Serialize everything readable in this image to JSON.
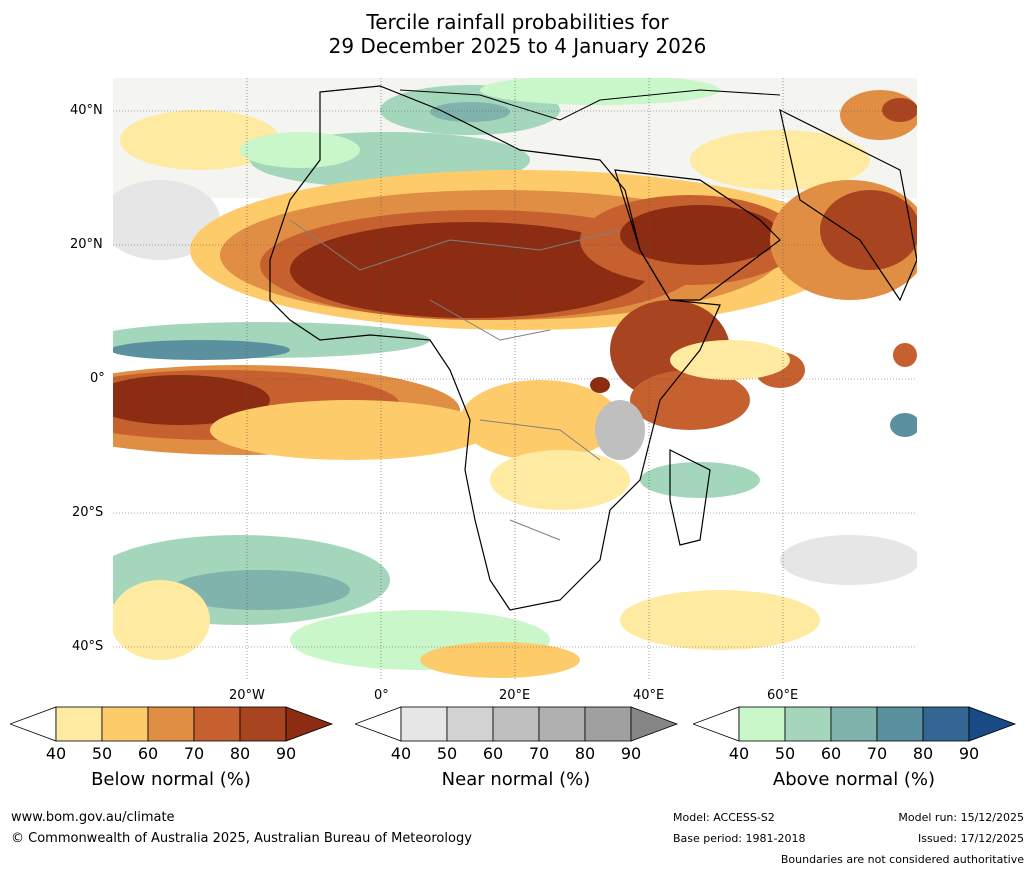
{
  "title": {
    "line1": "Tercile rainfall probabilities for",
    "line2": "29 December 2025 to 4 January 2026"
  },
  "map": {
    "lat_labels": [
      "40°N",
      "20°N",
      "0°",
      "20°S",
      "40°S"
    ],
    "lon_labels": [
      "20°W",
      "0°",
      "20°E",
      "40°E",
      "60°E"
    ],
    "region": "Africa"
  },
  "legends": [
    {
      "name": "Below normal (%)",
      "ticks": [
        "40",
        "50",
        "60",
        "70",
        "80",
        "90"
      ],
      "colors": [
        "#ffffff",
        "#feeaa0",
        "#fecb6a",
        "#e08e44",
        "#c7602f",
        "#a8441f",
        "#8b2c13"
      ]
    },
    {
      "name": "Near normal (%)",
      "ticks": [
        "40",
        "50",
        "60",
        "70",
        "80",
        "90"
      ],
      "colors": [
        "#ffffff",
        "#e6e6e6",
        "#d2d2d2",
        "#bfbfbf",
        "#b0b0b0",
        "#a0a0a0",
        "#858585"
      ]
    },
    {
      "name": "Above normal (%)",
      "ticks": [
        "40",
        "50",
        "60",
        "70",
        "80",
        "90"
      ],
      "colors": [
        "#ffffff",
        "#c9f7c9",
        "#a3d6bb",
        "#7fb3ac",
        "#5b909e",
        "#336693",
        "#1a4a85"
      ]
    }
  ],
  "footer": {
    "url": "www.bom.gov.au/climate",
    "copyright": "© Commonwealth of Australia 2025, Australian Bureau of Meteorology",
    "model": "Model: ACCESS-S2",
    "base_period": "Base period: 1981-2018",
    "model_run": "Model run: 15/12/2025",
    "issued": "Issued: 17/12/2025",
    "disclaimer": "Boundaries are not considered authoritative"
  }
}
